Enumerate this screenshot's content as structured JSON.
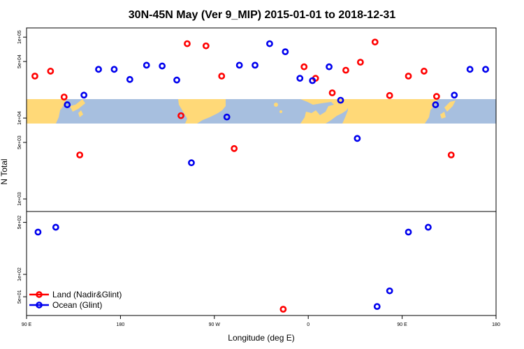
{
  "chart_data": {
    "type": "scatter",
    "title": "30N-45N May (Ver 9_MIP)   2015-01-01 to 2018-12-31",
    "xlabel": "Longitude (deg E)",
    "ylabel": "N Total",
    "xlim": [
      90,
      540
    ],
    "x_ticks": [
      {
        "value": 90,
        "label": "90 E"
      },
      {
        "value": 180,
        "label": "180"
      },
      {
        "value": 270,
        "label": "90 W"
      },
      {
        "value": 360,
        "label": "0"
      },
      {
        "value": 450,
        "label": "90 E"
      },
      {
        "value": 540,
        "label": "180"
      }
    ],
    "map_band_longitudes": [
      90,
      540
    ],
    "upper_panel": {
      "scale": "log",
      "ylim": [
        700,
        130000
      ],
      "y_ticks": [
        {
          "value": 1000,
          "label": "1e+03"
        },
        {
          "value": 5000,
          "label": "5e+03"
        },
        {
          "value": 10000,
          "label": "1e+04"
        },
        {
          "value": 50000,
          "label": "5e+04"
        },
        {
          "value": 100000,
          "label": "1e+05"
        }
      ]
    },
    "lower_panel": {
      "scale": "log",
      "ylim": [
        28,
        700
      ],
      "y_ticks": [
        {
          "value": 50,
          "label": "5e+01"
        },
        {
          "value": 100,
          "label": "1e+02"
        },
        {
          "value": 500,
          "label": "5e+02"
        }
      ]
    },
    "series": [
      {
        "name": "Land (Nadir&Glint)",
        "color": "#ff0000",
        "points": [
          {
            "x": 98,
            "y": 33000
          },
          {
            "x": 113,
            "y": 38000
          },
          {
            "x": 126,
            "y": 18200
          },
          {
            "x": 141,
            "y": 3500
          },
          {
            "x": 238,
            "y": 10700
          },
          {
            "x": 244,
            "y": 83000
          },
          {
            "x": 262,
            "y": 78000
          },
          {
            "x": 277,
            "y": 33000
          },
          {
            "x": 289,
            "y": 4200
          },
          {
            "x": 356,
            "y": 43000
          },
          {
            "x": 367,
            "y": 31000
          },
          {
            "x": 383,
            "y": 20500
          },
          {
            "x": 396,
            "y": 39000
          },
          {
            "x": 410,
            "y": 49000
          },
          {
            "x": 424,
            "y": 87000
          },
          {
            "x": 438,
            "y": 19000
          },
          {
            "x": 456,
            "y": 33000
          },
          {
            "x": 471,
            "y": 38000
          },
          {
            "x": 483,
            "y": 18500
          },
          {
            "x": 497,
            "y": 3500
          },
          {
            "x": 336,
            "y": 34
          }
        ]
      },
      {
        "name": "Ocean (Glint)",
        "color": "#0000ee",
        "points": [
          {
            "x": 101,
            "y": 370
          },
          {
            "x": 118,
            "y": 430
          },
          {
            "x": 129,
            "y": 14600
          },
          {
            "x": 145,
            "y": 19200
          },
          {
            "x": 159,
            "y": 40000
          },
          {
            "x": 174,
            "y": 40000
          },
          {
            "x": 189,
            "y": 30000
          },
          {
            "x": 205,
            "y": 45000
          },
          {
            "x": 220,
            "y": 44000
          },
          {
            "x": 234,
            "y": 29500
          },
          {
            "x": 248,
            "y": 2800
          },
          {
            "x": 282,
            "y": 10300
          },
          {
            "x": 294,
            "y": 45000
          },
          {
            "x": 309,
            "y": 45000
          },
          {
            "x": 323,
            "y": 83000
          },
          {
            "x": 338,
            "y": 66000
          },
          {
            "x": 352,
            "y": 31000
          },
          {
            "x": 364,
            "y": 29000
          },
          {
            "x": 380,
            "y": 43000
          },
          {
            "x": 391,
            "y": 16600
          },
          {
            "x": 407,
            "y": 5600
          },
          {
            "x": 426,
            "y": 37
          },
          {
            "x": 438,
            "y": 60
          },
          {
            "x": 456,
            "y": 370
          },
          {
            "x": 475,
            "y": 430
          },
          {
            "x": 482,
            "y": 14600
          },
          {
            "x": 500,
            "y": 19200
          },
          {
            "x": 515,
            "y": 40000
          },
          {
            "x": 530,
            "y": 40000
          }
        ]
      }
    ],
    "legend": {
      "placement": "bottom-left",
      "entries": [
        {
          "label": "Land (Nadir&Glint)",
          "color": "#ff0000"
        },
        {
          "label": "Ocean (Glint)",
          "color": "#0000ee"
        }
      ]
    },
    "map_colors": {
      "ocean": "#a7bfdf",
      "land": "#ffd978"
    }
  }
}
